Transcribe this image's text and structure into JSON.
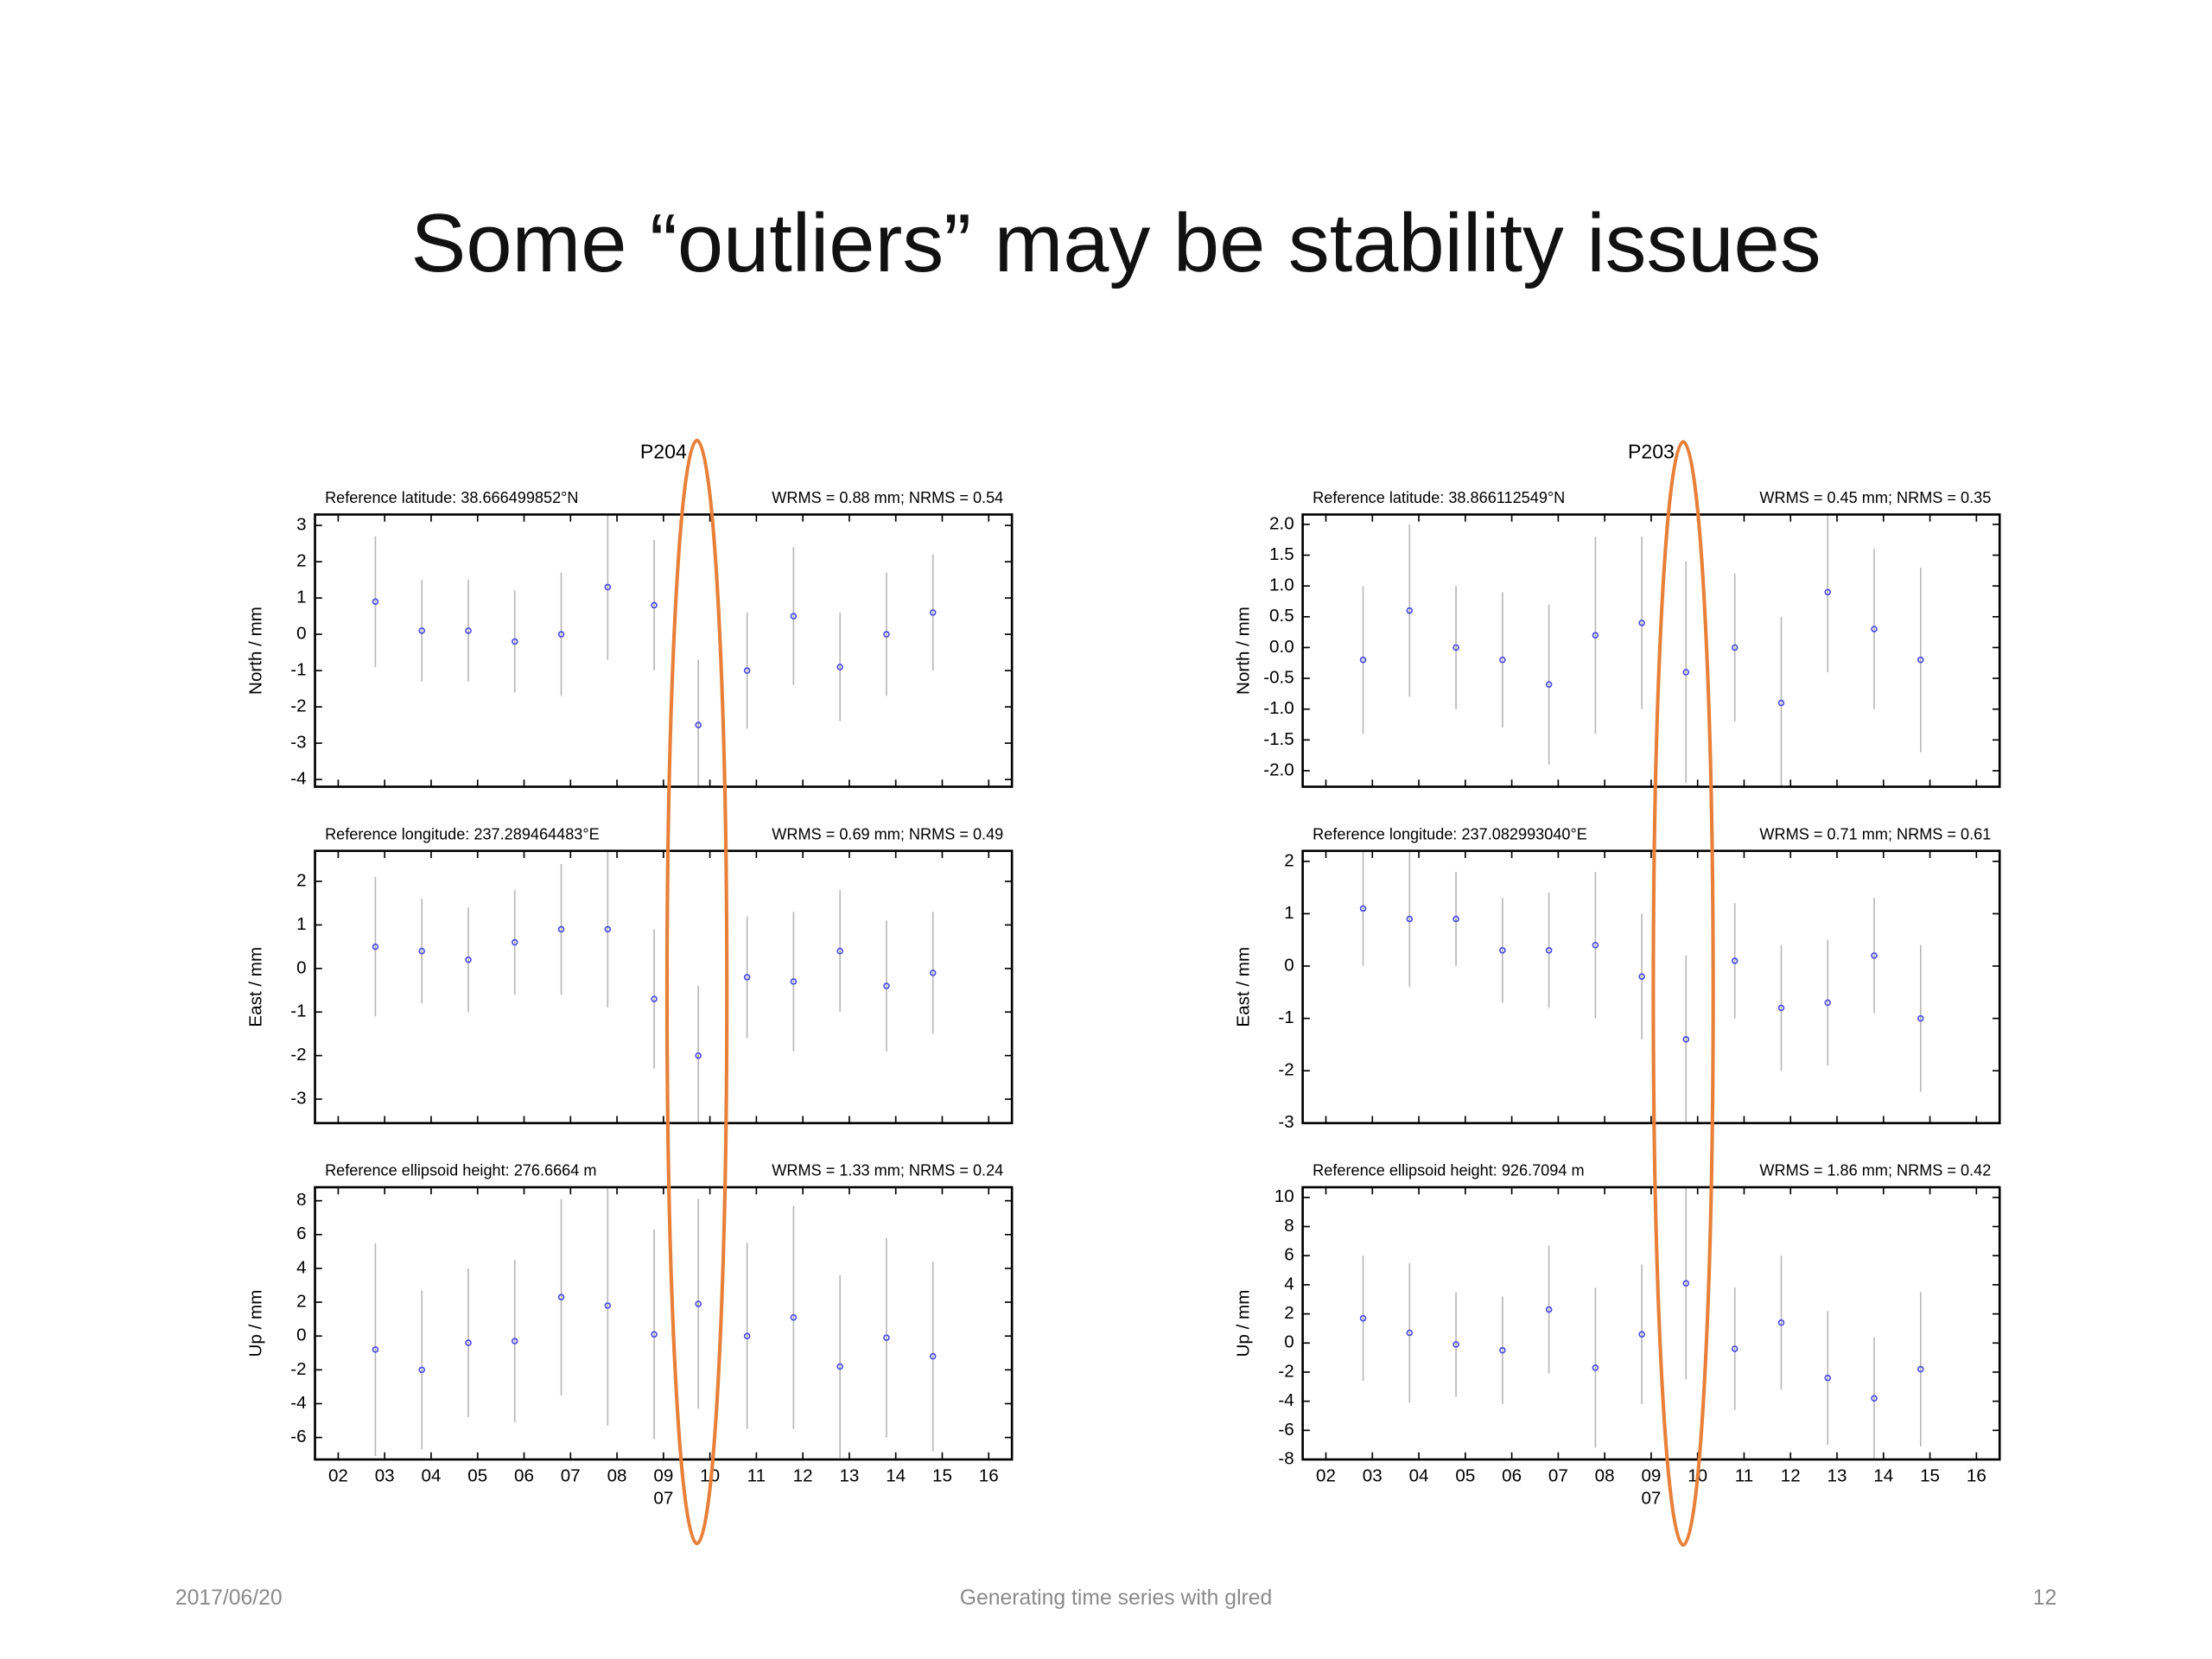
{
  "slide": {
    "title": "Some “outliers” may be stability issues",
    "footer_left": "2017/06/20",
    "footer_center": "Generating time series with glred",
    "footer_right": "12"
  },
  "chart_data": [
    {
      "type": "errorbar",
      "title": "P204",
      "label_left": "Reference latitude: 38.666499852°N",
      "label_right": "WRMS = 0.88 mm; NRMS = 0.54",
      "ylabel": "North / mm",
      "x": [
        2.8,
        3.8,
        4.8,
        5.8,
        6.8,
        7.8,
        8.8,
        9.75,
        10.8,
        11.8,
        12.8,
        13.8,
        14.8
      ],
      "values": [
        0.9,
        0.1,
        0.1,
        -0.2,
        0.0,
        1.3,
        0.8,
        -2.5,
        -1.0,
        0.5,
        -0.9,
        0.0,
        0.6
      ],
      "errors": [
        1.8,
        1.4,
        1.4,
        1.4,
        1.7,
        2.0,
        1.8,
        1.8,
        1.6,
        1.9,
        1.5,
        1.7,
        1.6
      ],
      "xlim": [
        1.5,
        16.5
      ],
      "xticks": [
        2,
        3,
        4,
        5,
        6,
        7,
        8,
        9,
        10,
        11,
        12,
        13,
        14,
        15,
        16
      ],
      "xtick_labels": false,
      "ylim": [
        -4.2,
        3.3
      ],
      "yticks": [
        3,
        2,
        1,
        0,
        -1,
        -2,
        -3,
        -4
      ],
      "color": "#4a4ae6",
      "error_color": "#b8b8b8"
    },
    {
      "type": "errorbar",
      "label_left": "Reference longitude: 237.289464483°E",
      "label_right": "WRMS = 0.69 mm; NRMS = 0.49",
      "ylabel": "East / mm",
      "x": [
        2.8,
        3.8,
        4.8,
        5.8,
        6.8,
        7.8,
        8.8,
        9.75,
        10.8,
        11.8,
        12.8,
        13.8,
        14.8
      ],
      "values": [
        0.5,
        0.4,
        0.2,
        0.6,
        0.9,
        0.9,
        -0.7,
        -2.0,
        -0.2,
        -0.3,
        0.4,
        -0.4,
        -0.1
      ],
      "errors": [
        1.6,
        1.2,
        1.2,
        1.2,
        1.5,
        1.8,
        1.6,
        1.6,
        1.4,
        1.6,
        1.4,
        1.5,
        1.4
      ],
      "xlim": [
        1.5,
        16.5
      ],
      "xticks": [
        2,
        3,
        4,
        5,
        6,
        7,
        8,
        9,
        10,
        11,
        12,
        13,
        14,
        15,
        16
      ],
      "xtick_labels": false,
      "ylim": [
        -3.55,
        2.7
      ],
      "yticks": [
        2,
        1,
        0,
        -1,
        -2,
        -3
      ],
      "color": "#4a4ae6",
      "error_color": "#b8b8b8"
    },
    {
      "type": "errorbar",
      "label_left": "Reference ellipsoid height: 276.6664 m",
      "label_right": "WRMS = 1.33 mm; NRMS = 0.24",
      "ylabel": "Up / mm",
      "x": [
        2.8,
        3.8,
        4.8,
        5.8,
        6.8,
        7.8,
        8.8,
        9.75,
        10.8,
        11.8,
        12.8,
        13.8,
        14.8
      ],
      "values": [
        -0.8,
        -2.0,
        -0.4,
        -0.3,
        2.3,
        1.8,
        0.1,
        1.9,
        0.0,
        1.1,
        -1.8,
        -0.1,
        -1.2
      ],
      "errors": [
        6.3,
        4.7,
        4.4,
        4.8,
        5.8,
        7.1,
        6.2,
        6.2,
        5.5,
        6.6,
        5.4,
        5.9,
        5.6
      ],
      "xlim": [
        1.5,
        16.5
      ],
      "xticks": [
        {
          "value": 2,
          "label": "02"
        },
        {
          "value": 3,
          "label": "03"
        },
        {
          "value": 4,
          "label": "04"
        },
        {
          "value": 5,
          "label": "05"
        },
        {
          "value": 6,
          "label": "06"
        },
        {
          "value": 7,
          "label": "07"
        },
        {
          "value": 8,
          "label": "08"
        },
        {
          "value": 9,
          "label": "09"
        },
        10,
        11,
        12,
        13,
        14,
        15,
        16
      ],
      "xtick_labels": true,
      "annotation": {
        "text": "07",
        "x": 9
      },
      "ylim": [
        -7.3,
        8.8
      ],
      "yticks": [
        8,
        6,
        4,
        2,
        0,
        -2,
        -4,
        -6
      ],
      "color": "#4a4ae6",
      "error_color": "#b8b8b8"
    },
    {
      "type": "errorbar",
      "title": "P203",
      "label_left": "Reference latitude: 38.866112549°N",
      "label_right": "WRMS = 0.45 mm; NRMS = 0.35",
      "ylabel": "North / mm",
      "x": [
        2.8,
        3.8,
        4.8,
        5.8,
        6.8,
        7.8,
        8.8,
        9.75,
        10.8,
        11.8,
        12.8,
        13.8,
        14.8
      ],
      "values": [
        -0.2,
        0.6,
        0.0,
        -0.2,
        -0.6,
        0.2,
        0.4,
        -0.4,
        0.0,
        -0.9,
        0.9,
        0.3,
        -0.2
      ],
      "errors": [
        1.2,
        1.4,
        1.0,
        1.1,
        1.3,
        1.6,
        1.4,
        1.8,
        1.2,
        1.4,
        1.3,
        1.3,
        1.5
      ],
      "xlim": [
        1.5,
        16.5
      ],
      "xticks": [
        2,
        3,
        4,
        5,
        6,
        7,
        8,
        9,
        10,
        11,
        12,
        13,
        14,
        15,
        16
      ],
      "xtick_labels": false,
      "ylim": [
        -2.26,
        2.16
      ],
      "yticks": [
        {
          "value": 2,
          "label": "2.0"
        },
        1.5,
        {
          "value": 1,
          "label": "1.0"
        },
        0.5,
        {
          "value": 0,
          "label": "0.0"
        },
        -0.5,
        {
          "value": -1,
          "label": "-1.0"
        },
        -1.5,
        {
          "value": -2,
          "label": "-2.0"
        }
      ],
      "color": "#4a4ae6",
      "error_color": "#b8b8b8"
    },
    {
      "type": "errorbar",
      "label_left": "Reference longitude: 237.082993040°E",
      "label_right": "WRMS = 0.71 mm; NRMS = 0.61",
      "ylabel": "East / mm",
      "x": [
        2.8,
        3.8,
        4.8,
        5.8,
        6.8,
        7.8,
        8.8,
        9.75,
        10.8,
        11.8,
        12.8,
        13.8,
        14.8
      ],
      "values": [
        1.1,
        0.9,
        0.9,
        0.3,
        0.3,
        0.4,
        -0.2,
        -1.4,
        0.1,
        -0.8,
        -0.7,
        0.2,
        -1.0
      ],
      "errors": [
        1.1,
        1.3,
        0.9,
        1.0,
        1.1,
        1.4,
        1.2,
        1.6,
        1.1,
        1.2,
        1.2,
        1.1,
        1.4
      ],
      "xlim": [
        1.5,
        16.5
      ],
      "xticks": [
        2,
        3,
        4,
        5,
        6,
        7,
        8,
        9,
        10,
        11,
        12,
        13,
        14,
        15,
        16
      ],
      "xtick_labels": false,
      "ylim": [
        -3,
        2.2
      ],
      "yticks": [
        2,
        1,
        0,
        -1,
        -2,
        -3
      ],
      "color": "#4a4ae6",
      "error_color": "#b8b8b8"
    },
    {
      "type": "errorbar",
      "label_left": "Reference ellipsoid height: 926.7094 m",
      "label_right": "WRMS = 1.86 mm; NRMS = 0.42",
      "ylabel": "Up / mm",
      "x": [
        2.8,
        3.8,
        4.8,
        5.8,
        6.8,
        7.8,
        8.8,
        9.75,
        10.8,
        11.8,
        12.8,
        13.8,
        14.8
      ],
      "values": [
        1.7,
        0.7,
        -0.1,
        -0.5,
        2.3,
        -1.7,
        0.6,
        4.1,
        -0.4,
        1.4,
        -2.4,
        -3.8,
        -1.8
      ],
      "errors": [
        4.3,
        4.8,
        3.6,
        3.7,
        4.4,
        5.5,
        4.8,
        6.6,
        4.2,
        4.6,
        4.6,
        4.2,
        5.3
      ],
      "xlim": [
        1.5,
        16.5
      ],
      "xticks": [
        {
          "value": 2,
          "label": "02"
        },
        {
          "value": 3,
          "label": "03"
        },
        {
          "value": 4,
          "label": "04"
        },
        {
          "value": 5,
          "label": "05"
        },
        {
          "value": 6,
          "label": "06"
        },
        {
          "value": 7,
          "label": "07"
        },
        {
          "value": 8,
          "label": "08"
        },
        {
          "value": 9,
          "label": "09"
        },
        10,
        11,
        12,
        13,
        14,
        15,
        16
      ],
      "xtick_labels": true,
      "annotation": {
        "text": "07",
        "x": 9
      },
      "ylim": [
        -8,
        10.7
      ],
      "yticks": [
        10,
        8,
        6,
        4,
        2,
        0,
        -2,
        -4,
        -6,
        -8
      ],
      "color": "#4a4ae6",
      "error_color": "#b8b8b8"
    }
  ]
}
